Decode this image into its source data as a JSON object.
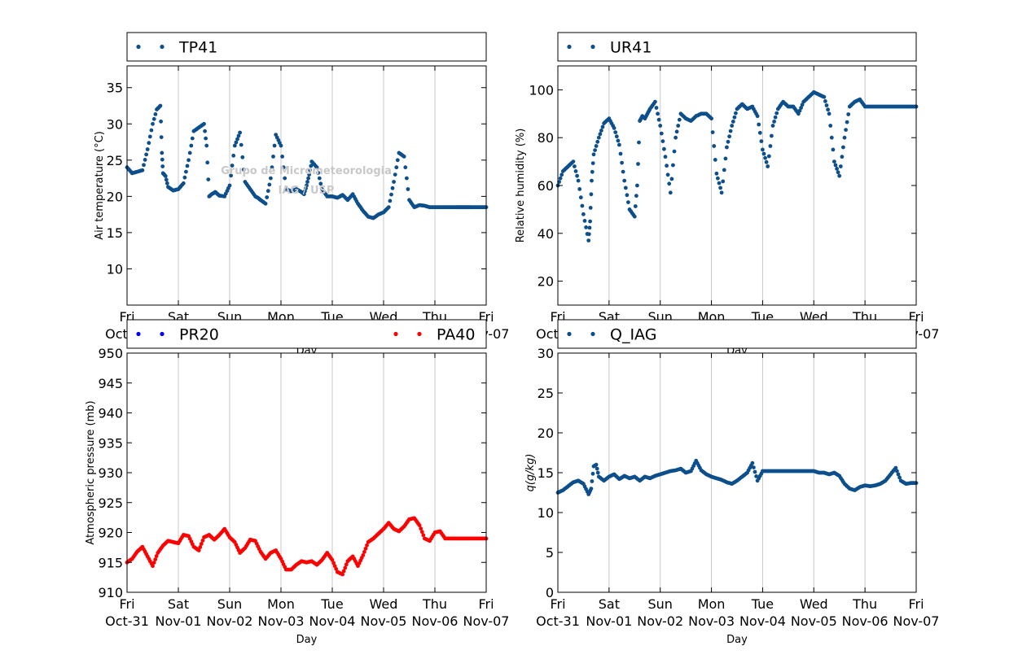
{
  "colors": {
    "blue_series": "#0c4f8c",
    "pr20": "#0000ff",
    "pa40": "#ff0000",
    "grid": "#c8c8c8",
    "watermark": "#c8c8c8"
  },
  "watermark": {
    "line1": "Grupo de Micrometeorologia",
    "line2": "IAG / USP"
  },
  "xaxis": {
    "label": "Day",
    "ticks": [
      {
        "d": 0,
        "day": "Fri",
        "date": "Oct-31"
      },
      {
        "d": 1,
        "day": "Sat",
        "date": "Nov-01"
      },
      {
        "d": 2,
        "day": "Sun",
        "date": "Nov-02"
      },
      {
        "d": 3,
        "day": "Mon",
        "date": "Nov-03"
      },
      {
        "d": 4,
        "day": "Tue",
        "date": "Nov-04"
      },
      {
        "d": 5,
        "day": "Wed",
        "date": "Nov-05"
      },
      {
        "d": 6,
        "day": "Thu",
        "date": "Nov-06"
      },
      {
        "d": 7,
        "day": "Fri",
        "date": "Nov-07"
      }
    ]
  },
  "chart_data": [
    {
      "type": "scatter",
      "id": "temp",
      "legend": [
        "TP41"
      ],
      "xlabel": "Day",
      "ylabel": "Air temperature (°C)",
      "ylim": [
        5,
        38
      ],
      "yticks": [
        10,
        15,
        20,
        25,
        30,
        35
      ],
      "grid": "vertical",
      "legend_position": "top",
      "series": [
        {
          "name": "TP41",
          "color": "#0c4f8c",
          "x": [
            0.0,
            0.1,
            0.2,
            0.3,
            0.4,
            0.5,
            0.58,
            0.65,
            0.68,
            0.7,
            0.75,
            0.8,
            0.9,
            1.0,
            1.1,
            1.2,
            1.3,
            1.4,
            1.5,
            1.55,
            1.6,
            1.65,
            1.7,
            1.72,
            1.75,
            1.8,
            1.9,
            2.0,
            2.1,
            2.2,
            2.3,
            2.4,
            2.5,
            2.55,
            2.6,
            2.7,
            2.8,
            2.9,
            3.0,
            3.1,
            3.2,
            3.3,
            3.4,
            3.45,
            3.5,
            3.55,
            3.6,
            3.7,
            3.8,
            3.9,
            4.0,
            4.1,
            4.2,
            4.3,
            4.4,
            4.5,
            4.6,
            4.7,
            4.8,
            4.9,
            5.0,
            5.1,
            5.2,
            5.3,
            5.4,
            5.5,
            5.6,
            5.7,
            5.8,
            5.9,
            6.0,
            6.1,
            6.2,
            6.3,
            6.4,
            6.45,
            6.5,
            6.55,
            6.6,
            6.65,
            6.7,
            6.8,
            6.9,
            7.0
          ],
          "y": [
            24.0,
            23.2,
            23.4,
            23.6,
            26.5,
            30.0,
            32.0,
            32.5,
            26.0,
            23.2,
            22.8,
            21.3,
            20.8,
            21.0,
            21.8,
            25.0,
            29.0,
            29.5,
            30.0,
            27.0,
            20.0,
            20.3,
            20.5,
            20.6,
            20.4,
            20.1,
            20.0,
            21.5,
            27.0,
            28.8,
            22.0,
            21.0,
            20.0,
            19.8,
            19.5,
            19.0,
            22.5,
            28.5,
            27.0,
            21.0,
            20.7,
            21.0,
            20.6,
            20.3,
            21.5,
            23.0,
            24.8,
            24.0,
            21.0,
            20.0,
            20.0,
            19.8,
            20.2,
            19.5,
            20.3,
            19.0,
            18.0,
            17.2,
            17.0,
            17.5,
            17.8,
            18.5,
            22.0,
            26.0,
            25.5,
            19.5,
            18.5,
            18.8,
            18.7,
            18.5,
            18.5,
            18.5,
            18.5,
            18.5,
            18.5,
            18.5,
            18.5,
            18.5,
            18.5,
            18.5,
            18.5,
            18.5,
            18.5,
            18.5
          ]
        }
      ]
    },
    {
      "type": "scatter",
      "id": "rh",
      "legend": [
        "UR41"
      ],
      "xlabel": "Day",
      "ylabel": "Relative humidity (%)",
      "ylim": [
        10,
        110
      ],
      "yticks": [
        20,
        40,
        60,
        80,
        100
      ],
      "grid": "vertical",
      "legend_position": "top",
      "series": [
        {
          "name": "UR41",
          "color": "#0c4f8c",
          "x": [
            0.0,
            0.1,
            0.2,
            0.3,
            0.4,
            0.5,
            0.6,
            0.63,
            0.66,
            0.7,
            0.8,
            0.9,
            1.0,
            1.1,
            1.2,
            1.3,
            1.4,
            1.5,
            1.55,
            1.6,
            1.65,
            1.7,
            1.75,
            1.8,
            1.9,
            2.0,
            2.1,
            2.2,
            2.3,
            2.4,
            2.5,
            2.6,
            2.7,
            2.8,
            2.9,
            3.0,
            3.1,
            3.2,
            3.3,
            3.4,
            3.5,
            3.6,
            3.7,
            3.8,
            3.9,
            4.0,
            4.1,
            4.2,
            4.3,
            4.4,
            4.5,
            4.6,
            4.7,
            4.8,
            4.9,
            5.0,
            5.1,
            5.2,
            5.3,
            5.4,
            5.5,
            5.6,
            5.7,
            5.8,
            5.9,
            6.0,
            6.1,
            6.2,
            6.3,
            6.4,
            6.5,
            6.6,
            6.7,
            6.8,
            6.9,
            7.0
          ],
          "y": [
            60,
            66,
            68,
            70,
            62,
            48,
            37,
            45,
            62,
            73,
            80,
            86,
            88,
            84,
            77,
            62,
            50,
            47,
            60,
            87,
            89,
            88,
            90,
            92,
            95,
            85,
            72,
            57,
            80,
            90,
            88,
            87,
            89,
            90,
            90,
            88,
            65,
            57,
            76,
            85,
            92,
            94,
            92,
            93,
            89,
            75,
            68,
            85,
            92,
            95,
            93,
            93,
            90,
            95,
            97,
            99,
            98,
            97,
            90,
            70,
            64,
            80,
            93,
            95,
            96,
            93,
            93,
            93,
            93,
            93,
            93,
            93,
            93,
            93,
            93,
            93
          ]
        }
      ]
    },
    {
      "type": "scatter",
      "id": "pressure",
      "legend": [
        "PR20",
        "PA40"
      ],
      "xlabel": "Day",
      "ylabel": "Atmospheric pressure (mb)",
      "ylim": [
        910,
        950
      ],
      "yticks": [
        910,
        915,
        920,
        925,
        930,
        935,
        940,
        945,
        950
      ],
      "grid": "vertical",
      "legend_position": "top",
      "series": [
        {
          "name": "PR20",
          "color": "#0000ff",
          "x": [],
          "y": []
        },
        {
          "name": "PA40",
          "color": "#ff0000",
          "x": [
            0.0,
            0.1,
            0.2,
            0.3,
            0.4,
            0.5,
            0.6,
            0.7,
            0.8,
            0.9,
            1.0,
            1.1,
            1.2,
            1.3,
            1.4,
            1.5,
            1.6,
            1.7,
            1.8,
            1.9,
            2.0,
            2.1,
            2.2,
            2.3,
            2.4,
            2.5,
            2.6,
            2.7,
            2.8,
            2.9,
            3.0,
            3.1,
            3.2,
            3.3,
            3.4,
            3.5,
            3.6,
            3.7,
            3.8,
            3.9,
            4.0,
            4.1,
            4.2,
            4.3,
            4.4,
            4.5,
            4.6,
            4.7,
            4.8,
            4.9,
            5.0,
            5.1,
            5.2,
            5.3,
            5.4,
            5.5,
            5.6,
            5.7,
            5.8,
            5.9,
            6.0,
            6.1,
            6.2,
            6.3,
            6.4,
            6.5,
            6.6,
            6.7,
            6.8,
            6.9,
            7.0
          ],
          "y": [
            915.0,
            915.6,
            916.8,
            917.6,
            916.0,
            914.4,
            916.6,
            917.8,
            918.6,
            918.4,
            918.2,
            919.6,
            919.4,
            917.6,
            917.0,
            919.2,
            919.6,
            918.8,
            919.6,
            920.6,
            919.2,
            918.4,
            916.6,
            917.4,
            918.8,
            918.6,
            916.8,
            915.6,
            916.6,
            917.0,
            915.6,
            913.8,
            913.8,
            914.6,
            915.2,
            915.0,
            915.2,
            914.6,
            915.4,
            916.6,
            915.4,
            913.4,
            913.0,
            915.2,
            916.0,
            914.4,
            916.2,
            918.4,
            919.0,
            919.8,
            920.6,
            921.6,
            920.6,
            920.2,
            921.0,
            922.2,
            922.4,
            921.2,
            919.0,
            918.6,
            920.0,
            920.2,
            919.0,
            919.0,
            919.0,
            919.0,
            919.0,
            919.0,
            919.0,
            919.0,
            919.0
          ]
        }
      ]
    },
    {
      "type": "scatter",
      "id": "q",
      "legend": [
        "Q_IAG"
      ],
      "xlabel": "Day",
      "ylabel": "q(g/kg)",
      "ylim": [
        0,
        30
      ],
      "yticks": [
        0,
        5,
        10,
        15,
        20,
        25,
        30
      ],
      "grid": "vertical",
      "legend_position": "top",
      "series": [
        {
          "name": "Q_IAG",
          "color": "#0c4f8c",
          "x": [
            0.0,
            0.1,
            0.2,
            0.3,
            0.4,
            0.5,
            0.6,
            0.65,
            0.7,
            0.75,
            0.8,
            0.9,
            1.0,
            1.1,
            1.2,
            1.3,
            1.4,
            1.5,
            1.6,
            1.7,
            1.8,
            1.9,
            2.0,
            2.1,
            2.2,
            2.3,
            2.4,
            2.5,
            2.6,
            2.7,
            2.8,
            2.9,
            3.0,
            3.1,
            3.2,
            3.3,
            3.4,
            3.5,
            3.6,
            3.7,
            3.8,
            3.9,
            4.0,
            5.0,
            5.1,
            5.2,
            5.3,
            5.4,
            5.5,
            5.6,
            5.7,
            5.8,
            5.9,
            6.0,
            6.1,
            6.2,
            6.3,
            6.4,
            6.5,
            6.6,
            6.7,
            6.8,
            6.9,
            7.0
          ],
          "y": [
            12.5,
            12.8,
            13.3,
            13.8,
            14.0,
            13.6,
            12.3,
            13.0,
            15.8,
            16.0,
            14.5,
            14.0,
            14.5,
            14.8,
            14.2,
            14.6,
            14.3,
            14.5,
            14.0,
            14.5,
            14.3,
            14.6,
            14.8,
            15.0,
            15.2,
            15.3,
            15.5,
            15.0,
            15.2,
            16.5,
            15.3,
            14.8,
            14.5,
            14.3,
            14.1,
            13.8,
            13.6,
            14.0,
            14.5,
            15.0,
            16.2,
            14.0,
            15.2,
            15.2,
            15.0,
            15.0,
            14.8,
            15.0,
            14.6,
            13.6,
            13.0,
            12.8,
            13.2,
            13.4,
            13.3,
            13.4,
            13.6,
            14.0,
            14.8,
            15.6,
            14.0,
            13.6,
            13.7,
            13.7
          ]
        }
      ]
    }
  ]
}
